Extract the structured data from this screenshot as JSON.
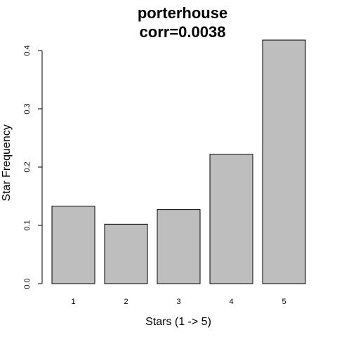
{
  "chart_data": {
    "type": "bar",
    "title_lines": [
      "porterhouse",
      "corr=0.0038"
    ],
    "xlabel": "Stars (1 -> 5)",
    "ylabel": "Star Frequency",
    "categories": [
      "1",
      "2",
      "3",
      "4",
      "5"
    ],
    "values": [
      0.133,
      0.102,
      0.127,
      0.222,
      0.418
    ],
    "yticks": [
      0.0,
      0.1,
      0.2,
      0.3,
      0.4
    ],
    "ylim": [
      0,
      0.418
    ],
    "bar_color": "#bebebe",
    "bar_edge_color": "#000000",
    "grid": false,
    "legend": "none"
  }
}
